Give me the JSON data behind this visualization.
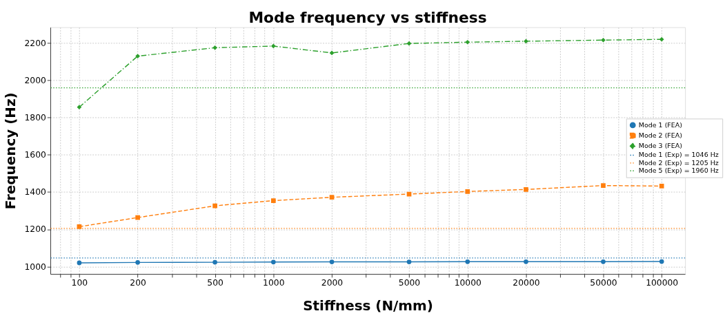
{
  "chart_data": {
    "type": "line",
    "title": "Mode frequency vs stiffness",
    "xlabel": "Stiffness (N/mm)",
    "ylabel": "Frequency (Hz)",
    "log": "x",
    "x": [
      100,
      200,
      500,
      1000,
      2000,
      5000,
      10000,
      20000,
      50000,
      100000
    ],
    "xlim": [
      71,
      132000
    ],
    "xticks": [
      100,
      200,
      500,
      1000,
      2000,
      5000,
      10000,
      20000,
      50000,
      100000
    ],
    "ylim": [
      960,
      2285
    ],
    "yticks": [
      1000,
      1200,
      1400,
      1600,
      1800,
      2000,
      2200
    ],
    "grid": true,
    "legend": "right",
    "series": [
      {
        "name": "Mode 1 (FEA)",
        "color": "#1f77b4",
        "marker": "circle",
        "line_style": "solid",
        "values": [
          1020,
          1022,
          1023,
          1024,
          1025,
          1025,
          1026,
          1026,
          1026,
          1027
        ]
      },
      {
        "name": "Mode 2 (FEA)",
        "color": "#ff7f0e",
        "marker": "square",
        "line_style": "dashed",
        "values": [
          1214,
          1263,
          1326,
          1354,
          1372,
          1389,
          1403,
          1414,
          1435,
          1432
        ]
      },
      {
        "name": "Mode 3 (FEA)",
        "color": "#2ca02c",
        "marker": "diamond",
        "line_style": "dashdot",
        "values": [
          1856,
          2130,
          2175,
          2184,
          2147,
          2198,
          2205,
          2210,
          2216,
          2220
        ]
      }
    ],
    "ref_lines": [
      {
        "axis": "y",
        "value": 1046,
        "label": "Mode 1 (Exp) = 1046 Hz",
        "color": "#1f77b4",
        "line_style": "dotted"
      },
      {
        "axis": "y",
        "value": 1205,
        "label": "Mode 2 (Exp) = 1205 Hz",
        "color": "#ff7f0e",
        "line_style": "dotted"
      },
      {
        "axis": "y",
        "value": 1960,
        "label": "Mode 5 (Exp) = 1960 Hz",
        "color": "#2ca02c",
        "line_style": "dotted"
      }
    ]
  }
}
